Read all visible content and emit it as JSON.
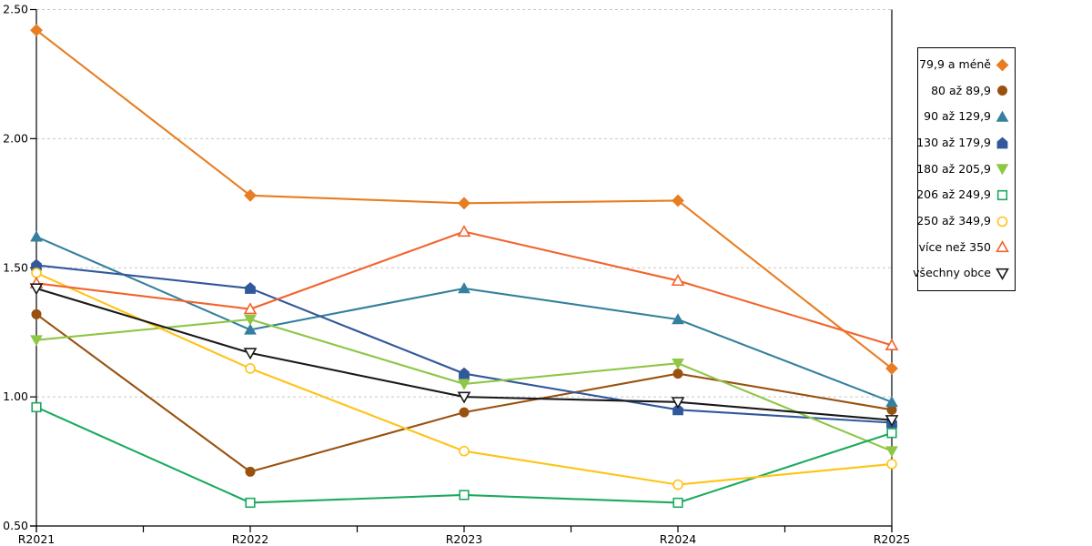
{
  "chart_data": {
    "type": "line",
    "title": "",
    "xlabel": "",
    "ylabel": "",
    "categories": [
      "R2021",
      "R2022",
      "R2023",
      "R2024",
      "R2025"
    ],
    "ylim": [
      0.5,
      2.5
    ],
    "yticks": [
      0.5,
      1.0,
      1.5,
      2.0,
      2.5
    ],
    "ytick_labels": [
      "0.50",
      "1.00",
      "1.50",
      "2.00",
      "2.50"
    ],
    "grid": "horizontal-dashed",
    "gridline_color": "#c8c8c8",
    "legend_position": "right-outside",
    "series": [
      {
        "name": "79,9 a méně",
        "marker": "diamond",
        "fill": "solid",
        "color": "#e87d22",
        "values": [
          2.42,
          1.78,
          1.75,
          1.76,
          1.11
        ]
      },
      {
        "name": "80 až 89,9",
        "marker": "circle",
        "fill": "solid",
        "color": "#99510f",
        "values": [
          1.32,
          0.71,
          0.94,
          1.09,
          0.95
        ]
      },
      {
        "name": "90 až 129,9",
        "marker": "triangle-up",
        "fill": "solid",
        "color": "#35809e",
        "values": [
          1.62,
          1.26,
          1.42,
          1.3,
          0.98
        ]
      },
      {
        "name": "130 až 179,9",
        "marker": "pentagon",
        "fill": "solid",
        "color": "#31589b",
        "values": [
          1.51,
          1.42,
          1.09,
          0.95,
          0.9
        ]
      },
      {
        "name": "180 až 205,9",
        "marker": "triangle-down",
        "fill": "solid",
        "color": "#8ec646",
        "values": [
          1.22,
          1.3,
          1.05,
          1.13,
          0.79
        ]
      },
      {
        "name": "206 až 249,9",
        "marker": "square",
        "fill": "open",
        "color": "#1caa5f",
        "values": [
          0.96,
          0.59,
          0.62,
          0.59,
          0.86
        ]
      },
      {
        "name": "250 až 349,9",
        "marker": "circle",
        "fill": "open",
        "color": "#ffc316",
        "values": [
          1.48,
          1.11,
          0.79,
          0.66,
          0.74
        ]
      },
      {
        "name": "více než 350",
        "marker": "triangle-up",
        "fill": "open",
        "color": "#f2642c",
        "values": [
          1.44,
          1.34,
          1.64,
          1.45,
          1.2
        ]
      },
      {
        "name": "všechny obce",
        "marker": "triangle-down",
        "fill": "open",
        "color": "#1a1a1a",
        "values": [
          1.42,
          1.17,
          1.0,
          0.98,
          0.91
        ]
      }
    ]
  }
}
